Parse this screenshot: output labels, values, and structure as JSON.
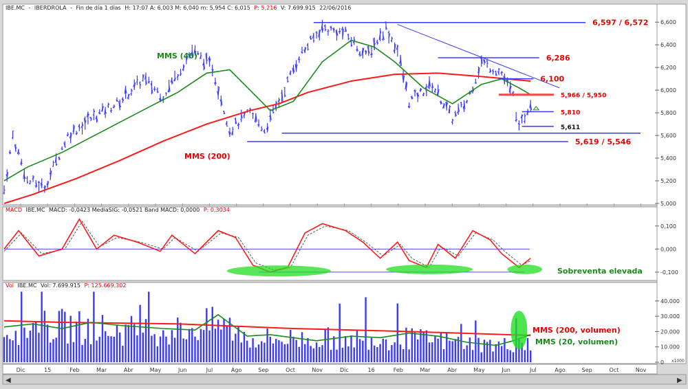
{
  "headers": {
    "price": {
      "symbol": "IBE.MC",
      "name": "IBERDROLA",
      "period": "Fin de día 1 días",
      "stats": "H: 17:07 A: 6,003 M: 6,040 m: 5,954 C: 6,015",
      "pct": "P: 5,216",
      "vol": "V: 7.699.915",
      "date": "22/06/2016"
    },
    "macd": {
      "prefix": "MACD",
      "symbol": "IBE.MC",
      "stats": "MACD: -0,0423  MediaSIG: -0,0521  Band  MACD: 0,0000",
      "pct": "P: 0,3034"
    },
    "volume": {
      "prefix": "Vol",
      "symbol": "IBE.MC",
      "stats": "Vol: 7.699.915",
      "pct": "P: 125.669.302"
    }
  },
  "labels": {
    "mms40": "MMS (40)",
    "mms200": "MMS (200)",
    "sobreventa": "Sobreventa elevada",
    "mms200_vol": "MMS (200, volumen)",
    "mms20_vol": "MMS (20, volumen)",
    "l6597": "6,597 / 6,572",
    "l6286": "6,286",
    "l6100": "6,100",
    "l5966": "5,966 / 5,950",
    "l5810": "5,810",
    "l5611": "5,611",
    "l5619": "5,619 / 5,546",
    "vol_unit": "x1000"
  },
  "colors": {
    "bars": "#3a3aff",
    "mms_short": "#1a8a1a",
    "mms_long": "#ff1a1a",
    "signal": "#555555",
    "highlight": "#22dd22",
    "panel_bg": "#ffffff"
  },
  "chart_data": [
    {
      "type": "line",
      "panel": "price",
      "x_ticks": [
        "Dic",
        "15",
        "Feb",
        "Mar",
        "Abr",
        "May",
        "Jun",
        "Jul",
        "Ago",
        "Sep",
        "Oct",
        "Nov",
        "Dic",
        "16",
        "Feb",
        "Mar",
        "Abr",
        "May",
        "Jun",
        "Jul",
        "Ago",
        "Sep",
        "Oct",
        "Nov"
      ],
      "y_ticks": [
        "5,000",
        "5,200",
        "5,400",
        "5,600",
        "5,800",
        "6,000",
        "6,200",
        "6,400",
        "6,600"
      ],
      "ylim": [
        5.0,
        6.65
      ],
      "price_path": [
        [
          0,
          5.12
        ],
        [
          3,
          5.6
        ],
        [
          8,
          5.2
        ],
        [
          14,
          5.15
        ],
        [
          22,
          5.6
        ],
        [
          30,
          5.75
        ],
        [
          40,
          5.9
        ],
        [
          48,
          6.1
        ],
        [
          55,
          5.95
        ],
        [
          65,
          6.35
        ],
        [
          72,
          6.2
        ],
        [
          78,
          5.65
        ],
        [
          85,
          5.8
        ],
        [
          90,
          5.65
        ],
        [
          95,
          5.9
        ],
        [
          102,
          6.3
        ],
        [
          110,
          6.55
        ],
        [
          118,
          6.5
        ],
        [
          125,
          6.3
        ],
        [
          132,
          6.55
        ],
        [
          136,
          6.35
        ],
        [
          140,
          5.9
        ],
        [
          148,
          6.05
        ],
        [
          155,
          5.75
        ],
        [
          160,
          5.9
        ],
        [
          165,
          6.25
        ],
        [
          172,
          6.15
        ],
        [
          176,
          5.95
        ],
        [
          178,
          5.65
        ],
        [
          182,
          5.9
        ]
      ],
      "mms_short_path": [
        [
          0,
          5.2
        ],
        [
          8,
          5.32
        ],
        [
          20,
          5.45
        ],
        [
          35,
          5.65
        ],
        [
          50,
          5.85
        ],
        [
          60,
          5.98
        ],
        [
          70,
          6.15
        ],
        [
          78,
          6.18
        ],
        [
          85,
          6.0
        ],
        [
          92,
          5.82
        ],
        [
          100,
          5.9
        ],
        [
          110,
          6.25
        ],
        [
          120,
          6.44
        ],
        [
          128,
          6.38
        ],
        [
          135,
          6.25
        ],
        [
          145,
          6.02
        ],
        [
          155,
          5.88
        ],
        [
          165,
          6.05
        ],
        [
          172,
          6.1
        ],
        [
          178,
          6.02
        ],
        [
          182,
          5.96
        ]
      ],
      "mms_long_path": [
        [
          0,
          5.0
        ],
        [
          10,
          5.08
        ],
        [
          25,
          5.22
        ],
        [
          40,
          5.38
        ],
        [
          55,
          5.55
        ],
        [
          70,
          5.7
        ],
        [
          85,
          5.82
        ],
        [
          95,
          5.88
        ],
        [
          105,
          5.98
        ],
        [
          120,
          6.08
        ],
        [
          135,
          6.14
        ],
        [
          150,
          6.15
        ],
        [
          165,
          6.12
        ],
        [
          182,
          6.08
        ]
      ],
      "annotations": [
        {
          "kind": "hline",
          "y": 6.597,
          "x0": 107,
          "x1": 201,
          "label_key": "l6597"
        },
        {
          "kind": "hline",
          "y": 6.286,
          "x0": 150,
          "x1": 185,
          "label_key": "l6286"
        },
        {
          "kind": "hline",
          "y": 6.1,
          "x0": 171,
          "x1": 183,
          "label_key": "l6100"
        },
        {
          "kind": "hline",
          "y": 5.96,
          "x0": 171,
          "x1": 190,
          "label_key": "l5966",
          "thick": true
        },
        {
          "kind": "hline",
          "y": 5.81,
          "x0": 179,
          "x1": 190,
          "label_key": "l5810"
        },
        {
          "kind": "hline",
          "y": 5.68,
          "x0": 179,
          "x1": 190,
          "label_key": "l5611"
        },
        {
          "kind": "hline",
          "y": 5.62,
          "x0": 96,
          "x1": 220
        },
        {
          "kind": "hline",
          "y": 5.546,
          "x0": 84,
          "x1": 195,
          "label_key": "l5619"
        },
        {
          "kind": "trend",
          "p0": [
            136,
            6.58
          ],
          "p1": [
            192,
            6.02
          ]
        }
      ]
    },
    {
      "type": "line",
      "panel": "macd",
      "y_ticks": [
        "0,100",
        "0,000",
        "-0,100"
      ],
      "ylim": [
        -0.13,
        0.15
      ],
      "macd_path": [
        [
          0,
          0.0
        ],
        [
          5,
          0.08
        ],
        [
          12,
          -0.03
        ],
        [
          20,
          0.0
        ],
        [
          26,
          0.13
        ],
        [
          32,
          0.0
        ],
        [
          38,
          0.06
        ],
        [
          46,
          0.03
        ],
        [
          54,
          -0.01
        ],
        [
          58,
          0.06
        ],
        [
          66,
          -0.02
        ],
        [
          74,
          0.08
        ],
        [
          80,
          0.05
        ],
        [
          86,
          -0.07
        ],
        [
          92,
          -0.1
        ],
        [
          98,
          -0.08
        ],
        [
          104,
          0.07
        ],
        [
          110,
          0.11
        ],
        [
          118,
          0.08
        ],
        [
          124,
          0.03
        ],
        [
          130,
          -0.04
        ],
        [
          136,
          0.03
        ],
        [
          140,
          -0.05
        ],
        [
          146,
          -0.08
        ],
        [
          150,
          0.02
        ],
        [
          156,
          -0.04
        ],
        [
          162,
          0.08
        ],
        [
          168,
          0.04
        ],
        [
          172,
          -0.02
        ],
        [
          178,
          -0.08
        ],
        [
          182,
          -0.04
        ]
      ],
      "signal_path": [
        [
          0,
          -0.01
        ],
        [
          6,
          0.07
        ],
        [
          13,
          -0.02
        ],
        [
          21,
          0.0
        ],
        [
          27,
          0.12
        ],
        [
          33,
          0.01
        ],
        [
          39,
          0.05
        ],
        [
          47,
          0.03
        ],
        [
          55,
          0.0
        ],
        [
          59,
          0.05
        ],
        [
          67,
          -0.01
        ],
        [
          75,
          0.07
        ],
        [
          81,
          0.05
        ],
        [
          87,
          -0.06
        ],
        [
          93,
          -0.09
        ],
        [
          99,
          -0.08
        ],
        [
          105,
          0.06
        ],
        [
          111,
          0.1
        ],
        [
          119,
          0.08
        ],
        [
          125,
          0.03
        ],
        [
          131,
          -0.03
        ],
        [
          137,
          0.02
        ],
        [
          141,
          -0.04
        ],
        [
          147,
          -0.08
        ],
        [
          151,
          0.01
        ],
        [
          157,
          -0.03
        ],
        [
          163,
          0.07
        ],
        [
          169,
          0.04
        ],
        [
          173,
          -0.01
        ],
        [
          179,
          -0.07
        ],
        [
          182,
          -0.05
        ]
      ],
      "support_y": -0.1
    },
    {
      "type": "bar",
      "panel": "volume",
      "y_ticks": [
        "40.000",
        "30.000",
        "20.000",
        "10.000",
        "0"
      ],
      "ylim": [
        0,
        48000
      ],
      "vol_level": [
        [
          0,
          24000
        ],
        [
          20,
          26000
        ],
        [
          40,
          23000
        ],
        [
          60,
          23000
        ],
        [
          75,
          28000
        ],
        [
          85,
          17000
        ],
        [
          100,
          17000
        ],
        [
          120,
          17000
        ],
        [
          140,
          17000
        ],
        [
          160,
          14000
        ],
        [
          172,
          12000
        ],
        [
          182,
          16000
        ]
      ],
      "mms_short_path": [
        [
          0,
          23000
        ],
        [
          10,
          25000
        ],
        [
          20,
          22000
        ],
        [
          30,
          26000
        ],
        [
          40,
          24000
        ],
        [
          55,
          22000
        ],
        [
          66,
          21000
        ],
        [
          74,
          31000
        ],
        [
          84,
          17000
        ],
        [
          92,
          18000
        ],
        [
          108,
          14000
        ],
        [
          120,
          17000
        ],
        [
          130,
          16000
        ],
        [
          140,
          19000
        ],
        [
          150,
          17000
        ],
        [
          160,
          13000
        ],
        [
          170,
          11000
        ],
        [
          176,
          14000
        ],
        [
          182,
          18000
        ]
      ],
      "mms_long_path": [
        [
          0,
          27000
        ],
        [
          20,
          26000
        ],
        [
          60,
          25000
        ],
        [
          100,
          22000
        ],
        [
          140,
          20000
        ],
        [
          182,
          17500
        ]
      ]
    }
  ]
}
